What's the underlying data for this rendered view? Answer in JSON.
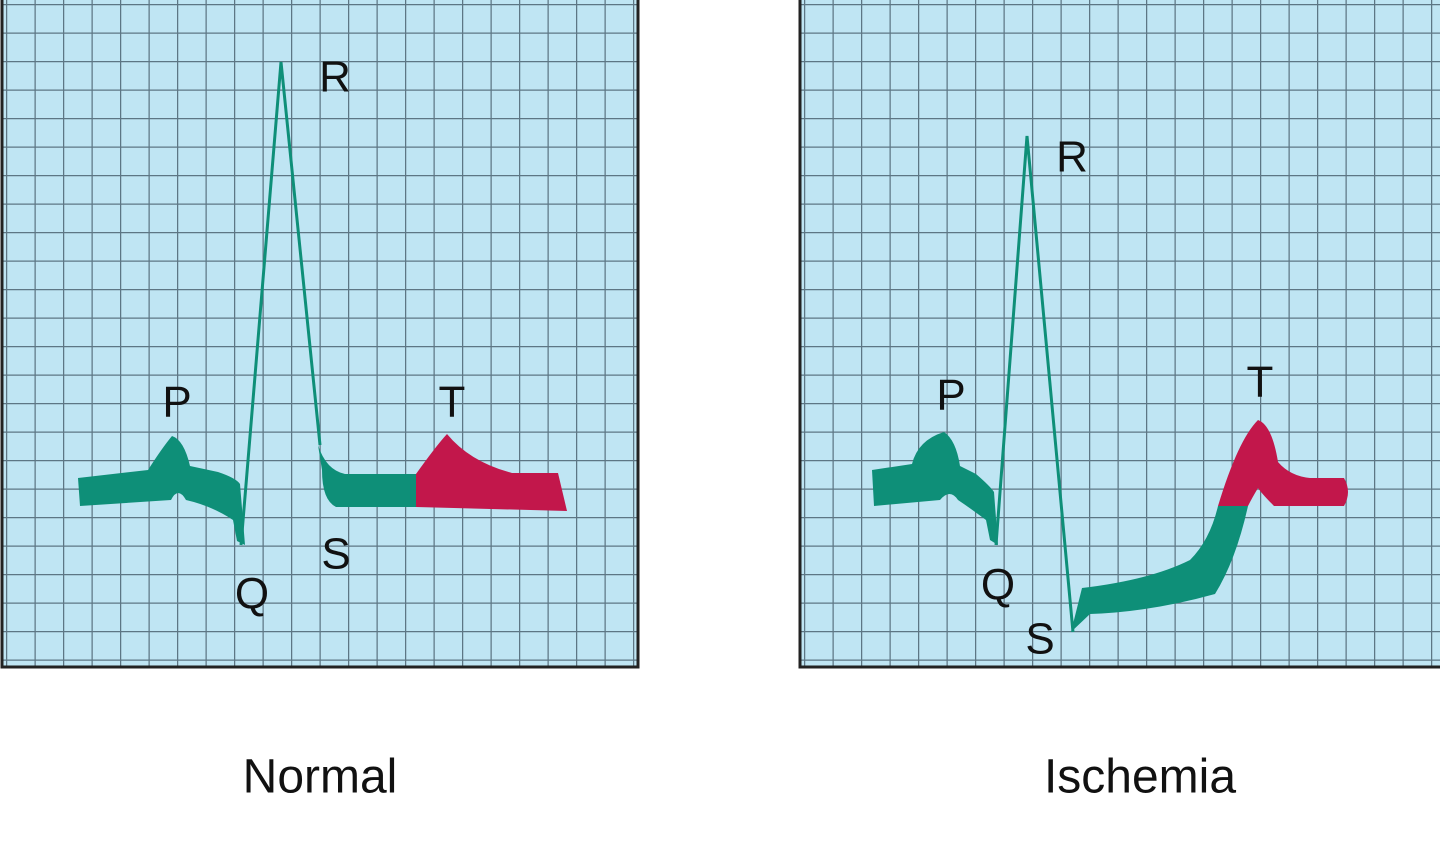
{
  "panels": [
    {
      "caption": "Normal",
      "waves": [
        "P",
        "Q",
        "R",
        "S",
        "T"
      ]
    },
    {
      "caption": "Ischemia",
      "waves": [
        "P",
        "Q",
        "R",
        "S",
        "T"
      ]
    }
  ]
}
